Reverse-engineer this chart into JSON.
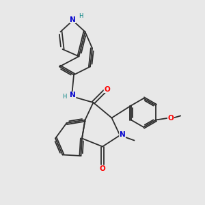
{
  "bg_color": "#e8e8e8",
  "bond_color": "#2d2d2d",
  "N_color": "#0000cd",
  "O_color": "#ff0000",
  "H_color": "#008080",
  "font_size": 7.5,
  "figsize": [
    3.0,
    3.0
  ],
  "dpi": 100,
  "lw": 1.3,
  "xlim": [
    0,
    10
  ],
  "ylim": [
    0,
    10
  ]
}
